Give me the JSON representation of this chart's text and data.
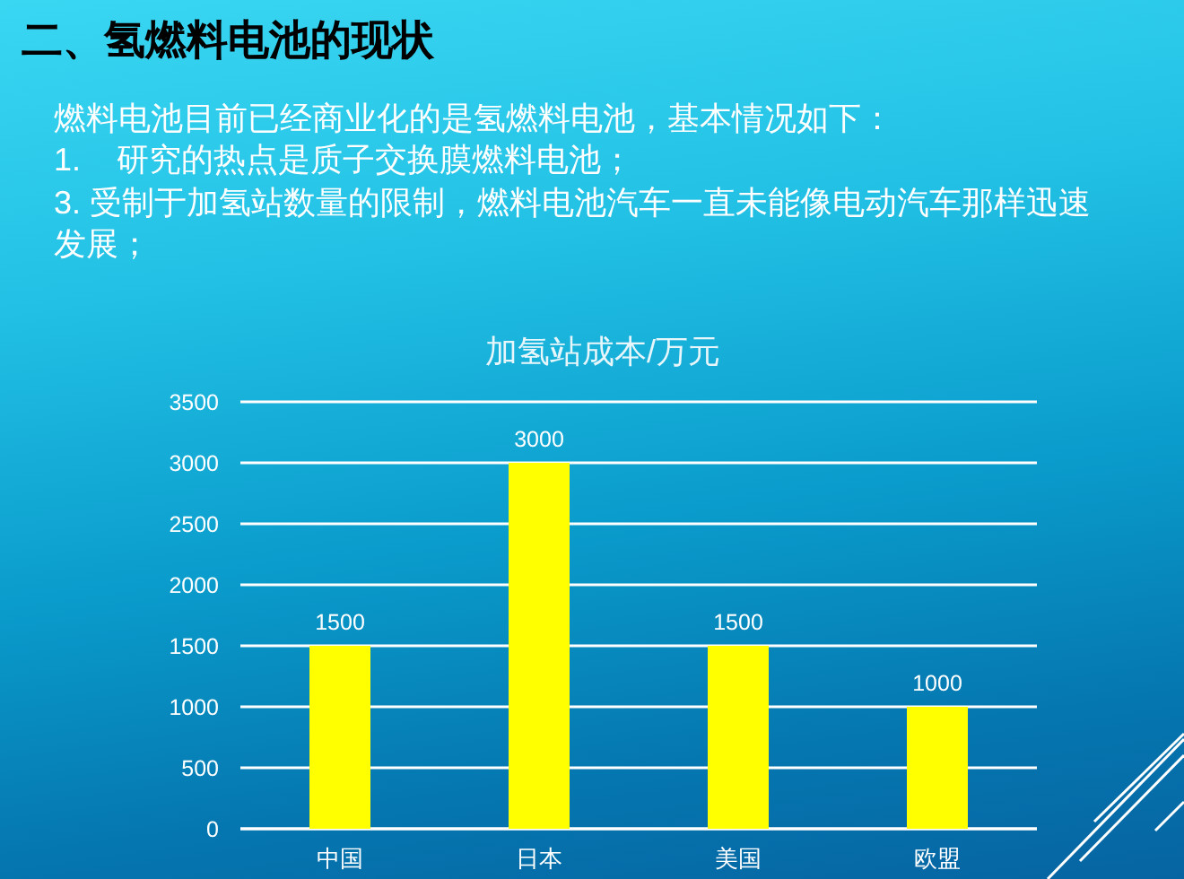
{
  "chart_data": {
    "type": "bar",
    "title": "加氢站成本/万元",
    "categories": [
      "中国",
      "日本",
      "美国",
      "欧盟"
    ],
    "values": [
      1500,
      3000,
      1500,
      1000
    ],
    "color": "#ffff00",
    "ylim": [
      0,
      3500
    ],
    "yticks": [
      0,
      500,
      1000,
      1500,
      2000,
      2500,
      3000,
      3500
    ],
    "grid": "y",
    "data_labels": true,
    "annotations": [
      "二、氢燃料电池的现状",
      "燃料电池目前已经商业化的是氢燃料电池，基本情况如下：",
      "1.    研究的热点是质子交换膜燃料电池；",
      "3. 受制于加氢站数量的限制，燃料电池汽车一直未能像电动汽车那样迅速发展；"
    ]
  }
}
